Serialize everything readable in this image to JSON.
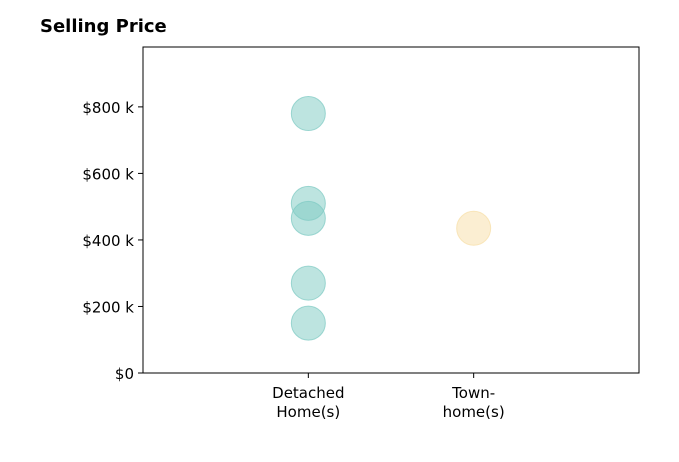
{
  "chart_data": {
    "type": "scatter",
    "title": "Selling Price",
    "xlabel": "",
    "ylabel": "",
    "categories": [
      [
        "Detached",
        "Home(s)"
      ],
      [
        "Town-",
        "home(s)"
      ]
    ],
    "xlim": [
      -1,
      2
    ],
    "ylim": [
      0,
      980
    ],
    "yticks": [
      0,
      200,
      400,
      600,
      800
    ],
    "yticklabels": [
      "$0",
      "$200 k",
      "$400 k",
      "$600 k",
      "$800 k"
    ],
    "grid": false,
    "series": [
      {
        "category": 0,
        "color": "#80cbc4",
        "values": [
          780,
          510,
          465,
          270,
          150
        ]
      },
      {
        "category": 1,
        "color": "#f7dfa8",
        "values": [
          435
        ]
      }
    ]
  }
}
